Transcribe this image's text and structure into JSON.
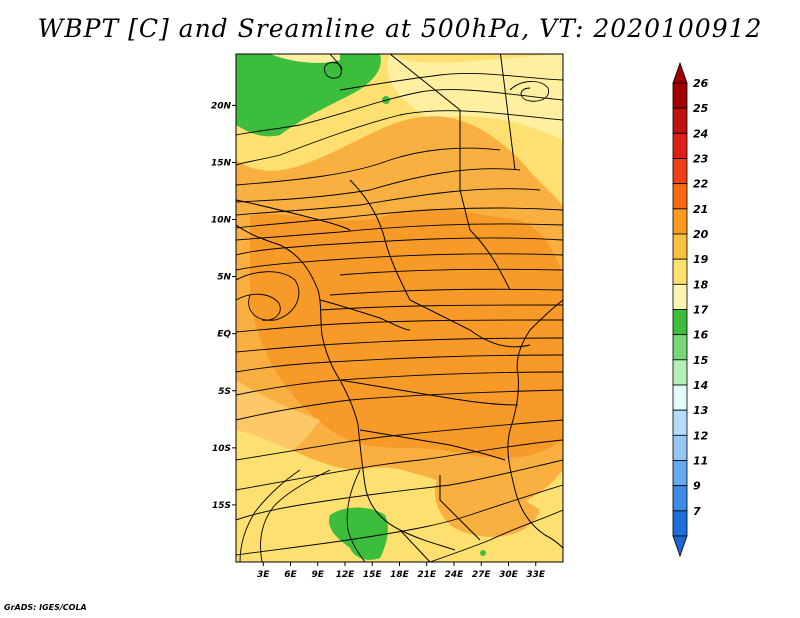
{
  "title": "WBPT [C] and Sreamline at 500hPa, VT: 2020100912",
  "footer": "GrADS: IGES/COLA",
  "map": {
    "lon_range": [
      0,
      36
    ],
    "lat_range": [
      -20,
      24.5
    ],
    "lat_ticks": [
      {
        "value": 20,
        "label": "20N"
      },
      {
        "value": 15,
        "label": "15N"
      },
      {
        "value": 10,
        "label": "10N"
      },
      {
        "value": 5,
        "label": "5N"
      },
      {
        "value": 0,
        "label": "EQ"
      },
      {
        "value": -5,
        "label": "5S"
      },
      {
        "value": -10,
        "label": "10S"
      },
      {
        "value": -15,
        "label": "15S"
      }
    ],
    "lon_ticks": [
      {
        "value": 3,
        "label": "3E"
      },
      {
        "value": 6,
        "label": "6E"
      },
      {
        "value": 9,
        "label": "9E"
      },
      {
        "value": 12,
        "label": "12E"
      },
      {
        "value": 15,
        "label": "15E"
      },
      {
        "value": 18,
        "label": "18E"
      },
      {
        "value": 21,
        "label": "21E"
      },
      {
        "value": 24,
        "label": "24E"
      },
      {
        "value": 27,
        "label": "27E"
      },
      {
        "value": 30,
        "label": "30E"
      },
      {
        "value": 33,
        "label": "33E"
      }
    ]
  },
  "colorbar": {
    "levels": [
      {
        "label": "26",
        "color": "#a00000"
      },
      {
        "label": "25",
        "color": "#c01010"
      },
      {
        "label": "24",
        "color": "#e02018"
      },
      {
        "label": "23",
        "color": "#f04018"
      },
      {
        "label": "22",
        "color": "#f86a10"
      },
      {
        "label": "21",
        "color": "#fa9a20"
      },
      {
        "label": "20",
        "color": "#fcc040"
      },
      {
        "label": "19",
        "color": "#fde070"
      },
      {
        "label": "18",
        "color": "#fef5b0"
      },
      {
        "label": "17",
        "color": "#3cbe3c"
      },
      {
        "label": "16",
        "color": "#78d878"
      },
      {
        "label": "15",
        "color": "#b4f0b4"
      },
      {
        "label": "14",
        "color": "#e2fbfb"
      },
      {
        "label": "13",
        "color": "#b4dcfa"
      },
      {
        "label": "12",
        "color": "#96c8f5"
      },
      {
        "label": "11",
        "color": "#64aaf0"
      },
      {
        "label": "9",
        "color": "#3c8ce6"
      },
      {
        "label": "7",
        "color": "#1e6edc"
      }
    ],
    "bottom_color": "#1e64d2"
  }
}
